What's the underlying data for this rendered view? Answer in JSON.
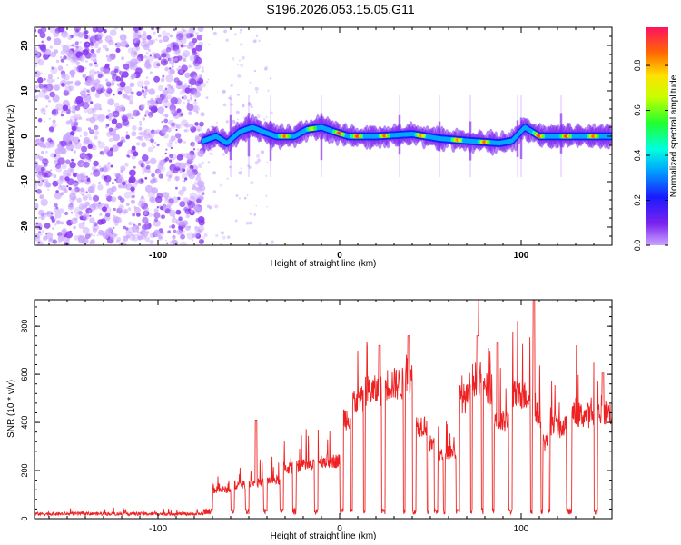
{
  "title": "S196.2026.053.15.05.G11",
  "chart_data": [
    {
      "type": "heatmap",
      "xlabel": "Height of straight line (km)",
      "ylabel": "Frequency (Hz)",
      "xlim": [
        -168,
        150
      ],
      "ylim": [
        -24,
        24
      ],
      "x_ticks": [
        -100,
        0,
        100
      ],
      "y_ticks": [
        -20,
        -10,
        0,
        10,
        20
      ],
      "colorbar": {
        "label": "Normalized spectral amplitude",
        "range": [
          0.0,
          0.97
        ],
        "ticks": [
          0.0,
          0.2,
          0.4,
          0.6,
          0.8
        ]
      },
      "noise_region_x": [
        -168,
        -77
      ],
      "signal_trace": [
        {
          "x": -75,
          "y": -1
        },
        {
          "x": -68,
          "y": 0
        },
        {
          "x": -62,
          "y": -1.5
        },
        {
          "x": -55,
          "y": 1
        },
        {
          "x": -48,
          "y": 2
        },
        {
          "x": -42,
          "y": 1
        },
        {
          "x": -35,
          "y": 0
        },
        {
          "x": -25,
          "y": 0
        },
        {
          "x": -18,
          "y": 1.5
        },
        {
          "x": -10,
          "y": 2
        },
        {
          "x": -3,
          "y": 1
        },
        {
          "x": 5,
          "y": 0
        },
        {
          "x": 20,
          "y": 0
        },
        {
          "x": 40,
          "y": 0.5
        },
        {
          "x": 55,
          "y": -0.5
        },
        {
          "x": 70,
          "y": -1
        },
        {
          "x": 88,
          "y": -1.5
        },
        {
          "x": 95,
          "y": -1
        },
        {
          "x": 102,
          "y": 2
        },
        {
          "x": 110,
          "y": 0
        },
        {
          "x": 130,
          "y": 0
        },
        {
          "x": 150,
          "y": 0
        }
      ],
      "signal_amplitude_peaks": [
        {
          "x": -30,
          "v": 0.9
        },
        {
          "x": -15,
          "v": 0.7
        },
        {
          "x": 0,
          "v": 0.95
        },
        {
          "x": 10,
          "v": 0.95
        },
        {
          "x": 25,
          "v": 0.9
        },
        {
          "x": 45,
          "v": 0.85
        },
        {
          "x": 65,
          "v": 0.85
        },
        {
          "x": 80,
          "v": 0.9
        },
        {
          "x": 110,
          "v": 0.95
        },
        {
          "x": 125,
          "v": 0.95
        },
        {
          "x": 140,
          "v": 0.9
        }
      ],
      "vertical_streaks_x": [
        -60,
        -50,
        -38,
        -10,
        33,
        55,
        72,
        98,
        100,
        122
      ]
    },
    {
      "type": "line",
      "xlabel": "Height of straight line (km)",
      "ylabel": "SNR (10 * v/v)",
      "xlim": [
        -168,
        150
      ],
      "ylim": [
        0,
        910
      ],
      "x_ticks": [
        -100,
        0,
        100
      ],
      "y_ticks": [
        0,
        200,
        400,
        600,
        800
      ],
      "color": "#ee2222",
      "baseline": {
        "x": [
          -168,
          -75
        ],
        "y": 20
      },
      "segments": [
        {
          "x0": -70,
          "x1": -60,
          "y": 120
        },
        {
          "x0": -58,
          "x1": -52,
          "y": 140
        },
        {
          "x0": -50,
          "x1": -42,
          "y": 150
        },
        {
          "x0": -40,
          "x1": -33,
          "y": 160
        },
        {
          "x0": -31,
          "x1": -26,
          "y": 210
        },
        {
          "x0": -24,
          "x1": -14,
          "y": 220
        },
        {
          "x0": -12,
          "x1": 0,
          "y": 240
        },
        {
          "x0": 2,
          "x1": 6,
          "y": 420
        },
        {
          "x0": 7,
          "x1": 13,
          "y": 490
        },
        {
          "x0": 14,
          "x1": 23,
          "y": 530
        },
        {
          "x0": 25,
          "x1": 35,
          "y": 560
        },
        {
          "x0": 36,
          "x1": 40,
          "y": 580
        },
        {
          "x0": 42,
          "x1": 48,
          "y": 390
        },
        {
          "x0": 49,
          "x1": 52,
          "y": 310
        },
        {
          "x0": 54,
          "x1": 57,
          "y": 260
        },
        {
          "x0": 58,
          "x1": 64,
          "y": 280
        },
        {
          "x0": 66,
          "x1": 72,
          "y": 500
        },
        {
          "x0": 73,
          "x1": 78,
          "y": 580
        },
        {
          "x0": 79,
          "x1": 84,
          "y": 540
        },
        {
          "x0": 85,
          "x1": 93,
          "y": 400
        },
        {
          "x0": 95,
          "x1": 105,
          "y": 510
        },
        {
          "x0": 106,
          "x1": 111,
          "y": 430
        },
        {
          "x0": 112,
          "x1": 115,
          "y": 320
        },
        {
          "x0": 116,
          "x1": 125,
          "y": 380
        },
        {
          "x0": 128,
          "x1": 140,
          "y": 430
        },
        {
          "x0": 142,
          "x1": 150,
          "y": 440
        }
      ],
      "spikes": [
        {
          "x": -46,
          "y": 410
        },
        {
          "x": 22,
          "y": 720
        },
        {
          "x": 38,
          "y": 760
        },
        {
          "x": 76,
          "y": 760
        },
        {
          "x": 87,
          "y": 730
        },
        {
          "x": 107,
          "y": 910
        },
        {
          "x": 145,
          "y": 610
        }
      ]
    }
  ]
}
